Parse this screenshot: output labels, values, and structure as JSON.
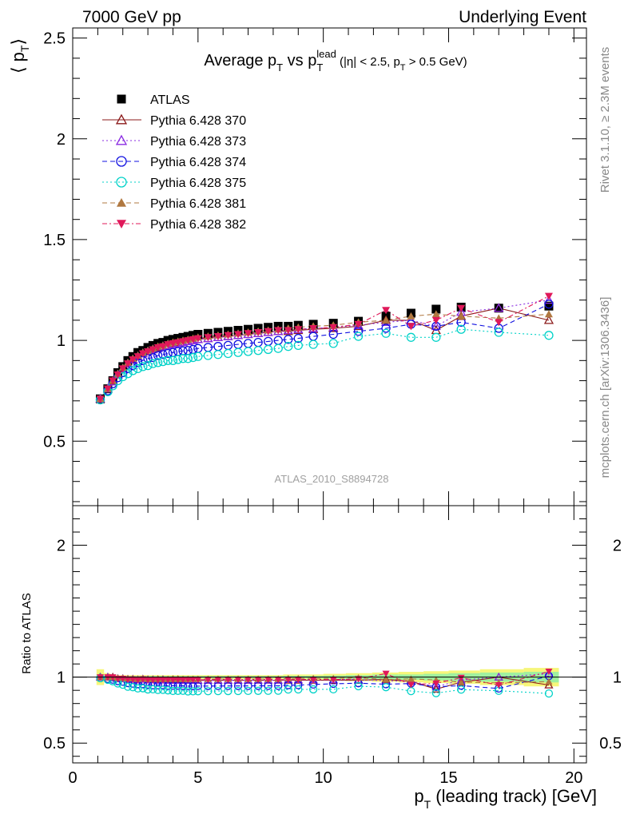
{
  "header": {
    "left": "7000 GeV pp",
    "right": "Underlying Event"
  },
  "title": {
    "main": "Average p",
    "main_sub": "T",
    "vs": " vs p",
    "vs_sub": "T",
    "vs_sup": "lead",
    "cut_open": " (|η| < 2.5, p",
    "cut_sub": "T",
    "cut_close": " > 0.5 GeV)"
  },
  "ylabel_main": {
    "open": "⟨ p",
    "sub": "T",
    "close": "⟩"
  },
  "ylabel_ratio": "Ratio to ATLAS",
  "xlabel": {
    "p": "p",
    "sub": "T",
    "rest": " (leading track) [GeV]"
  },
  "watermark": "ATLAS_2010_S8894728",
  "side_text_top": "Rivet 3.1.10, ≥ 2.3M events",
  "side_text_bottom": "mcplots.cern.ch [arXiv:1306.3436]",
  "chart_data": {
    "type": "scatter",
    "x": [
      1.1,
      1.4,
      1.6,
      1.8,
      2.0,
      2.2,
      2.4,
      2.6,
      2.8,
      3.0,
      3.2,
      3.4,
      3.6,
      3.8,
      4.0,
      4.2,
      4.4,
      4.6,
      4.8,
      5.0,
      5.4,
      5.8,
      6.2,
      6.6,
      7.0,
      7.4,
      7.8,
      8.2,
      8.6,
      9.0,
      9.6,
      10.4,
      11.4,
      12.5,
      13.5,
      14.5,
      15.5,
      17.0,
      19.0
    ],
    "xlim": [
      0,
      20.5
    ],
    "xticks": [
      "0",
      "5",
      "10",
      "15",
      "20"
    ],
    "main_ylim": [
      0.18,
      2.55
    ],
    "main_yticks": [
      "0.5",
      "1",
      "1.5",
      "2",
      "2.5"
    ],
    "ratio_ylim": [
      0.35,
      2.3
    ],
    "ratio_yticks": [
      "0.5",
      "1",
      "2"
    ],
    "series": [
      {
        "name": "ATLAS",
        "color": "#000000",
        "marker": "square",
        "dash": "none",
        "values": [
          0.71,
          0.76,
          0.8,
          0.84,
          0.87,
          0.9,
          0.92,
          0.94,
          0.95,
          0.965,
          0.975,
          0.985,
          0.99,
          1.0,
          1.005,
          1.01,
          1.015,
          1.02,
          1.025,
          1.03,
          1.035,
          1.04,
          1.045,
          1.05,
          1.055,
          1.06,
          1.065,
          1.07,
          1.07,
          1.075,
          1.08,
          1.085,
          1.095,
          1.12,
          1.135,
          1.155,
          1.165,
          1.16,
          1.17
        ]
      },
      {
        "name": "Pythia 6.428 370",
        "color": "#8b1a1a",
        "marker": "triangle-open",
        "dash": "none",
        "values": [
          0.71,
          0.76,
          0.8,
          0.83,
          0.86,
          0.885,
          0.905,
          0.92,
          0.935,
          0.945,
          0.955,
          0.965,
          0.97,
          0.975,
          0.985,
          0.99,
          0.99,
          0.995,
          1.0,
          1.005,
          1.01,
          1.015,
          1.02,
          1.025,
          1.03,
          1.035,
          1.04,
          1.045,
          1.045,
          1.05,
          1.055,
          1.06,
          1.07,
          1.1,
          1.1,
          1.05,
          1.12,
          1.16,
          1.1
        ]
      },
      {
        "name": "Pythia 6.428 373",
        "color": "#8a2be2",
        "marker": "triangle-open",
        "dash": "2,3",
        "values": [
          0.71,
          0.76,
          0.795,
          0.83,
          0.86,
          0.885,
          0.905,
          0.92,
          0.935,
          0.945,
          0.955,
          0.96,
          0.97,
          0.975,
          0.98,
          0.985,
          0.99,
          0.995,
          1.0,
          1.005,
          1.01,
          1.015,
          1.02,
          1.025,
          1.03,
          1.035,
          1.04,
          1.045,
          1.05,
          1.055,
          1.06,
          1.065,
          1.075,
          1.09,
          1.1,
          1.07,
          1.14,
          1.16,
          1.2
        ]
      },
      {
        "name": "Pythia 6.428 374",
        "color": "#1010e0",
        "marker": "circle-open",
        "dash": "6,4",
        "values": [
          0.705,
          0.75,
          0.785,
          0.815,
          0.84,
          0.86,
          0.875,
          0.89,
          0.9,
          0.91,
          0.915,
          0.925,
          0.93,
          0.935,
          0.94,
          0.945,
          0.948,
          0.95,
          0.955,
          0.96,
          0.965,
          0.97,
          0.975,
          0.98,
          0.985,
          0.99,
          0.995,
          1.0,
          1.005,
          1.01,
          1.02,
          1.03,
          1.045,
          1.06,
          1.08,
          1.07,
          1.09,
          1.06,
          1.18
        ]
      },
      {
        "name": "Pythia 6.428 375",
        "color": "#00d2c8",
        "marker": "circle-open",
        "dash": "2,3",
        "values": [
          0.705,
          0.745,
          0.775,
          0.8,
          0.82,
          0.835,
          0.85,
          0.86,
          0.87,
          0.875,
          0.885,
          0.89,
          0.895,
          0.9,
          0.9,
          0.905,
          0.91,
          0.91,
          0.915,
          0.92,
          0.925,
          0.93,
          0.935,
          0.94,
          0.945,
          0.95,
          0.955,
          0.96,
          0.97,
          0.975,
          0.98,
          0.985,
          1.02,
          1.035,
          1.015,
          1.015,
          1.055,
          1.04,
          1.025
        ]
      },
      {
        "name": "Pythia 6.428 381",
        "color": "#b07840",
        "marker": "triangle-filled",
        "dash": "6,4",
        "values": [
          0.71,
          0.76,
          0.8,
          0.835,
          0.865,
          0.89,
          0.91,
          0.925,
          0.94,
          0.95,
          0.96,
          0.97,
          0.975,
          0.985,
          0.99,
          0.995,
          1.0,
          1.005,
          1.01,
          1.015,
          1.02,
          1.025,
          1.03,
          1.035,
          1.04,
          1.045,
          1.05,
          1.055,
          1.06,
          1.065,
          1.07,
          1.075,
          1.09,
          1.1,
          1.12,
          1.13,
          1.12,
          1.11,
          1.13
        ]
      },
      {
        "name": "Pythia 6.428 382",
        "color": "#e0185a",
        "marker": "triangle-down-filled",
        "dash": "6,3,2,3",
        "values": [
          0.71,
          0.76,
          0.8,
          0.83,
          0.86,
          0.885,
          0.905,
          0.92,
          0.935,
          0.945,
          0.955,
          0.965,
          0.97,
          0.98,
          0.985,
          0.99,
          0.995,
          1.0,
          1.005,
          1.01,
          1.015,
          1.02,
          1.025,
          1.03,
          1.035,
          1.04,
          1.045,
          1.05,
          1.05,
          1.055,
          1.06,
          1.065,
          1.08,
          1.15,
          1.07,
          1.1,
          1.16,
          1.09,
          1.22
        ]
      }
    ],
    "band_yellow_halfwidth": [
      0.06,
      0.03,
      0.02,
      0.015,
      0.015,
      0.015,
      0.015,
      0.015,
      0.015,
      0.015,
      0.015,
      0.015,
      0.015,
      0.015,
      0.015,
      0.015,
      0.015,
      0.015,
      0.015,
      0.015,
      0.015,
      0.015,
      0.015,
      0.015,
      0.015,
      0.015,
      0.015,
      0.015,
      0.02,
      0.02,
      0.02,
      0.025,
      0.03,
      0.035,
      0.04,
      0.045,
      0.05,
      0.06,
      0.07
    ],
    "band_green_halfwidth": [
      0.02,
      0.012,
      0.01,
      0.008,
      0.008,
      0.008,
      0.008,
      0.008,
      0.008,
      0.008,
      0.008,
      0.008,
      0.008,
      0.008,
      0.008,
      0.008,
      0.008,
      0.008,
      0.008,
      0.008,
      0.008,
      0.008,
      0.008,
      0.008,
      0.008,
      0.008,
      0.008,
      0.008,
      0.01,
      0.01,
      0.01,
      0.012,
      0.015,
      0.02,
      0.02,
      0.025,
      0.03,
      0.035,
      0.04
    ]
  }
}
